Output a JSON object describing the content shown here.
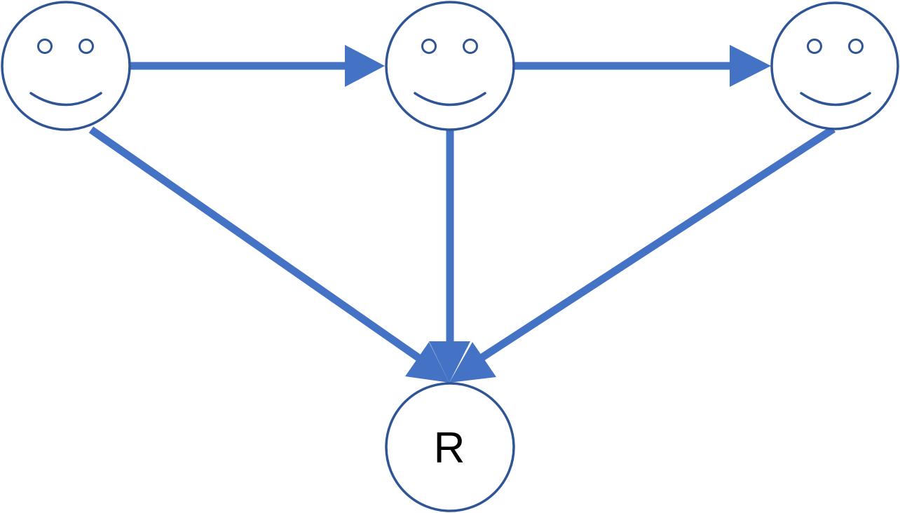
{
  "diagram": {
    "nodes": [
      {
        "id": "agent-1",
        "kind": "smiley-face",
        "label": ""
      },
      {
        "id": "agent-2",
        "kind": "smiley-face",
        "label": ""
      },
      {
        "id": "agent-3",
        "kind": "smiley-face",
        "label": ""
      },
      {
        "id": "result",
        "kind": "circle",
        "label": "R"
      }
    ],
    "edges": [
      {
        "from": "agent-1",
        "to": "agent-2"
      },
      {
        "from": "agent-2",
        "to": "agent-3"
      },
      {
        "from": "agent-1",
        "to": "result"
      },
      {
        "from": "agent-2",
        "to": "result"
      },
      {
        "from": "agent-3",
        "to": "result"
      }
    ]
  },
  "colors": {
    "node_outline": "#2f5597",
    "edge": "#4472c4",
    "label": "#000000",
    "background": "#ffffff"
  },
  "icons": [
    "smiley-face-icon"
  ]
}
